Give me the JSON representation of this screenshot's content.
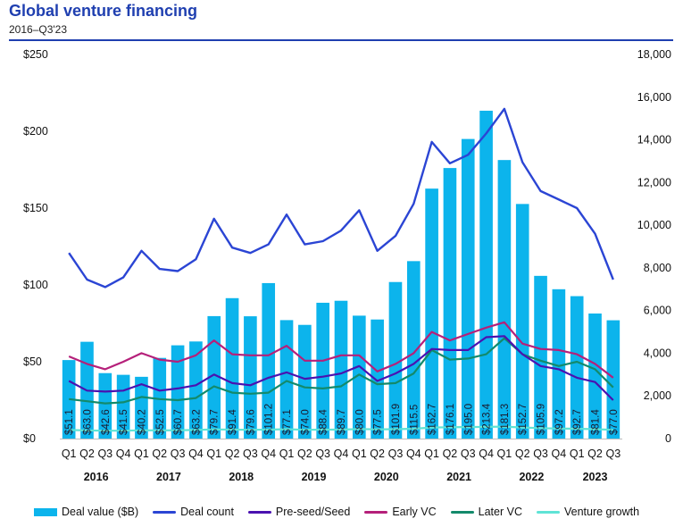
{
  "header": {
    "title": "Global venture financing",
    "subtitle": "2016–Q3'23"
  },
  "chart_data": {
    "type": "bar",
    "title": "Global venture financing",
    "subtitle": "2016–Q3'23",
    "categories": [
      "Q1",
      "Q2",
      "Q3",
      "Q4",
      "Q1",
      "Q2",
      "Q3",
      "Q4",
      "Q1",
      "Q2",
      "Q3",
      "Q4",
      "Q1",
      "Q2",
      "Q3",
      "Q4",
      "Q1",
      "Q2",
      "Q3",
      "Q4",
      "Q1",
      "Q2",
      "Q3",
      "Q4",
      "Q1",
      "Q2",
      "Q3",
      "Q4",
      "Q1",
      "Q2",
      "Q3"
    ],
    "years": [
      "2016",
      "2017",
      "2018",
      "2019",
      "2020",
      "2021",
      "2022",
      "2023"
    ],
    "y_left": {
      "ticks": [
        "$0",
        "$50",
        "$100",
        "$150",
        "$200",
        "$250"
      ],
      "range": [
        0,
        250
      ]
    },
    "y_right": {
      "ticks": [
        "0",
        "2,000",
        "4,000",
        "6,000",
        "8,000",
        "10,000",
        "12,000",
        "14,000",
        "16,000",
        "18,000"
      ],
      "range": [
        0,
        18000
      ]
    },
    "series": [
      {
        "name": "Deal value ($B)",
        "kind": "bar",
        "axis": "left",
        "color": "#0cb4ec",
        "values": [
          51.1,
          63.0,
          42.6,
          41.5,
          40.2,
          52.5,
          60.7,
          63.2,
          79.7,
          91.4,
          79.6,
          101.2,
          77.1,
          74.0,
          88.4,
          89.7,
          80.0,
          77.5,
          101.9,
          115.5,
          162.7,
          176.1,
          195.0,
          213.4,
          181.3,
          152.7,
          105.9,
          97.2,
          92.7,
          81.4,
          77.0
        ],
        "labels": [
          "$51.1",
          "$63.0",
          "$42.6",
          "$41.5",
          "$40.2",
          "$52.5",
          "$60.7",
          "$63.2",
          "$79.7",
          "$91.4",
          "$79.6",
          "$101.2",
          "$77.1",
          "$74.0",
          "$88.4",
          "$89.7",
          "$80.0",
          "$77.5",
          "$101.9",
          "$115.5",
          "$162.7",
          "$176.1",
          "$195.0",
          "$213.4",
          "$181.3",
          "$152.7",
          "$105.9",
          "$97.2",
          "$92.7",
          "$81.4",
          "$77.0"
        ]
      },
      {
        "name": "Deal count",
        "kind": "line",
        "axis": "right",
        "color": "#2b45d4",
        "values": [
          8700,
          7450,
          7100,
          7550,
          8800,
          7950,
          7850,
          8400,
          10300,
          8950,
          8700,
          9100,
          10500,
          9100,
          9250,
          9750,
          10700,
          8800,
          9500,
          11000,
          13900,
          12900,
          13300,
          14300,
          15450,
          12950,
          11600,
          11200,
          10800,
          9600,
          7450
        ]
      },
      {
        "name": "Pre-seed/Seed",
        "kind": "line",
        "axis": "right",
        "color": "#4a12b0",
        "values": [
          2700,
          2250,
          2200,
          2250,
          2550,
          2250,
          2350,
          2500,
          3000,
          2600,
          2500,
          2850,
          3100,
          2800,
          2900,
          3050,
          3400,
          2700,
          3050,
          3500,
          4200,
          4150,
          4150,
          4750,
          4800,
          3950,
          3400,
          3250,
          2850,
          2650,
          1800
        ]
      },
      {
        "name": "Early VC",
        "kind": "line",
        "axis": "right",
        "color": "#b5207a",
        "values": [
          3850,
          3500,
          3250,
          3600,
          4000,
          3700,
          3600,
          3900,
          4600,
          3950,
          3900,
          3900,
          4350,
          3650,
          3650,
          3900,
          3900,
          3150,
          3500,
          4000,
          5000,
          4600,
          4900,
          5200,
          5450,
          4450,
          4200,
          4150,
          3950,
          3500,
          2850
        ]
      },
      {
        "name": "Later VC",
        "kind": "line",
        "axis": "right",
        "color": "#138a6b",
        "values": [
          1850,
          1750,
          1650,
          1700,
          1950,
          1850,
          1800,
          1900,
          2450,
          2150,
          2100,
          2150,
          2700,
          2400,
          2350,
          2450,
          3000,
          2550,
          2600,
          3050,
          4150,
          3700,
          3750,
          3950,
          4700,
          3950,
          3650,
          3400,
          3600,
          3250,
          2400
        ]
      },
      {
        "name": "Venture growth",
        "kind": "line",
        "axis": "right",
        "color": "#5fe3d6",
        "values": [
          400,
          380,
          370,
          370,
          390,
          380,
          390,
          400,
          430,
          420,
          410,
          420,
          440,
          410,
          420,
          420,
          450,
          430,
          440,
          460,
          520,
          530,
          540,
          550,
          560,
          520,
          490,
          470,
          460,
          440,
          410
        ]
      }
    ]
  }
}
